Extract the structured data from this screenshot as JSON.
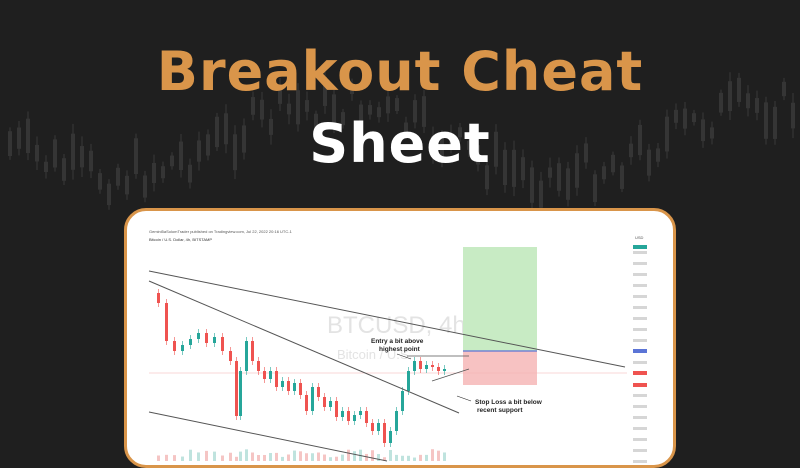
{
  "title": {
    "line1": "Breakout Cheat",
    "line2": "Sheet"
  },
  "colors": {
    "background": "#1f1f1f",
    "accent": "#d9954a",
    "bull_candle": "#26a69a",
    "bear_candle": "#ef5350",
    "profit_zone": "#c8ebc4",
    "loss_zone": "#f7b9b9",
    "entry_line": "#5b74d6"
  },
  "chart": {
    "header": "Gemini5aSolomTrader published on Tradingview.com, Jul 22, 2022 20:16 UTC-1",
    "symbol_line": "Bitcoin / U.S. Dollar, 4h, BITSTAMP",
    "watermark_symbol": "BTCUSD, 4h",
    "watermark_name": "Bitcoin / U.S.",
    "annotations": [
      {
        "text_lines": [
          "Entry a bit above",
          "highest point"
        ]
      },
      {
        "text_lines": [
          "Stop Loss a bit below",
          "recent support"
        ]
      }
    ],
    "price_axis_top": "USD"
  }
}
